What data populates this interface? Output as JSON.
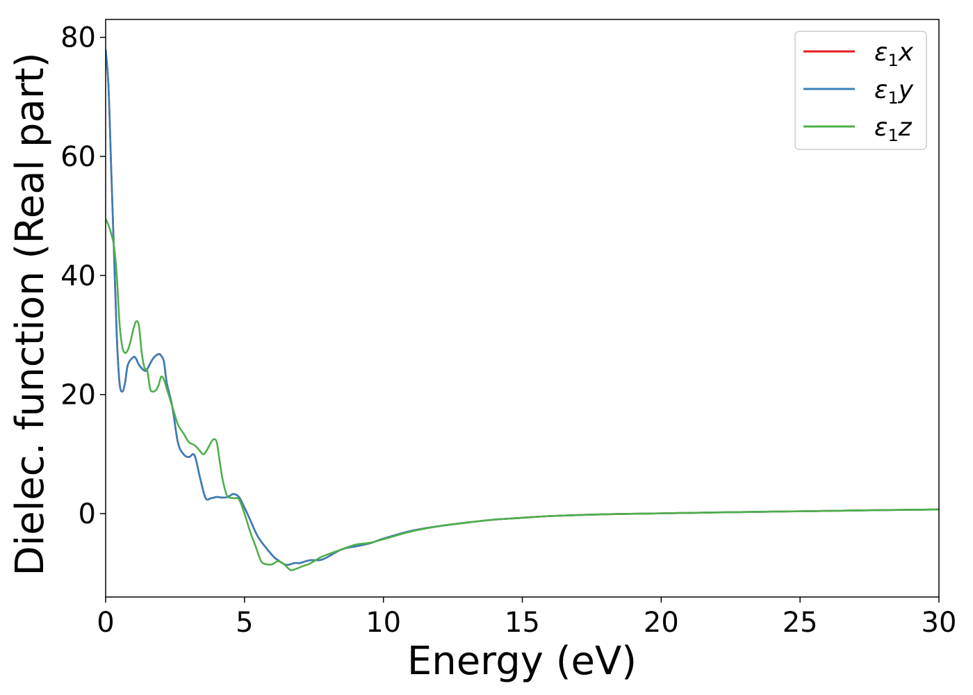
{
  "chart_data": {
    "type": "line",
    "title": "",
    "xlabel": "Energy (eV)",
    "ylabel": "Dielec. function (Real part)",
    "xlim": [
      0,
      30
    ],
    "ylim": [
      -14,
      83
    ],
    "xticks": [
      0,
      5,
      10,
      15,
      20,
      25,
      30
    ],
    "yticks": [
      0,
      20,
      40,
      60,
      80
    ],
    "xtick_labels": [
      "0",
      "5",
      "10",
      "15",
      "20",
      "25",
      "30"
    ],
    "ytick_labels": [
      "0",
      "20",
      "40",
      "60",
      "80"
    ],
    "grid": false,
    "legend_position": "top-right",
    "series": [
      {
        "name": "ε1x",
        "color": "#e41a1c",
        "x": [
          0,
          0.1,
          0.2,
          0.3,
          0.4,
          0.5,
          0.6,
          0.7,
          0.8,
          1.0,
          1.1,
          1.2,
          1.4,
          1.5,
          1.7,
          1.9,
          2.0,
          2.1,
          2.2,
          2.4,
          2.6,
          2.8,
          3.0,
          3.2,
          3.4,
          3.6,
          3.8,
          4.0,
          4.2,
          4.4,
          4.6,
          4.8,
          5.0,
          5.2,
          5.5,
          6.0,
          6.2,
          6.5,
          6.8,
          7.0,
          7.2,
          7.4,
          7.8,
          8.5,
          9.0,
          9.5,
          10.0,
          11.0,
          12.0,
          13.0,
          14.0,
          15.0,
          16.0,
          18.0,
          20.0,
          22.0,
          25.0,
          28.0,
          30.0
        ],
        "y": [
          78,
          72,
          58,
          44,
          30,
          22,
          20.5,
          22,
          25,
          26.3,
          26,
          25,
          24,
          24.3,
          26,
          26.8,
          26.5,
          25.5,
          22,
          18,
          12,
          10,
          9.5,
          9.8,
          6,
          2.6,
          2.6,
          2.8,
          2.7,
          2.8,
          3.3,
          2.8,
          1,
          -1,
          -4,
          -7,
          -7.8,
          -8.6,
          -8.3,
          -8.3,
          -8,
          -7.8,
          -7.7,
          -6,
          -5.5,
          -5,
          -4.2,
          -2.9,
          -2.1,
          -1.5,
          -1.0,
          -0.7,
          -0.4,
          -0.1,
          0.05,
          0.2,
          0.4,
          0.6,
          0.7
        ]
      },
      {
        "name": "ε1y",
        "color": "#377eb8",
        "x": [
          0,
          0.1,
          0.2,
          0.3,
          0.4,
          0.5,
          0.6,
          0.7,
          0.8,
          1.0,
          1.1,
          1.2,
          1.4,
          1.5,
          1.7,
          1.9,
          2.0,
          2.1,
          2.2,
          2.4,
          2.6,
          2.8,
          3.0,
          3.2,
          3.4,
          3.6,
          3.8,
          4.0,
          4.2,
          4.4,
          4.6,
          4.8,
          5.0,
          5.2,
          5.5,
          6.0,
          6.2,
          6.5,
          6.8,
          7.0,
          7.2,
          7.4,
          7.8,
          8.5,
          9.0,
          9.5,
          10.0,
          11.0,
          12.0,
          13.0,
          14.0,
          15.0,
          16.0,
          18.0,
          20.0,
          22.0,
          25.0,
          28.0,
          30.0
        ],
        "y": [
          78,
          72,
          58,
          44,
          30,
          22,
          20.5,
          22,
          25,
          26.3,
          26,
          25,
          24,
          24.3,
          26,
          26.8,
          26.5,
          25.5,
          22,
          18,
          12,
          10,
          9.5,
          9.8,
          6,
          2.6,
          2.6,
          2.8,
          2.7,
          2.8,
          3.3,
          2.8,
          1,
          -1,
          -4,
          -7,
          -7.8,
          -8.6,
          -8.3,
          -8.3,
          -8,
          -7.8,
          -7.7,
          -6,
          -5.5,
          -5,
          -4.2,
          -2.9,
          -2.1,
          -1.5,
          -1.0,
          -0.7,
          -0.4,
          -0.1,
          0.05,
          0.2,
          0.4,
          0.6,
          0.7
        ]
      },
      {
        "name": "ε1z",
        "color": "#4daf4a",
        "x": [
          0,
          0.1,
          0.2,
          0.3,
          0.4,
          0.5,
          0.6,
          0.7,
          0.8,
          0.9,
          1.0,
          1.1,
          1.2,
          1.3,
          1.4,
          1.5,
          1.6,
          1.7,
          1.8,
          1.9,
          2.0,
          2.1,
          2.2,
          2.4,
          2.6,
          2.8,
          3.0,
          3.2,
          3.4,
          3.5,
          3.6,
          3.8,
          3.9,
          4.0,
          4.1,
          4.2,
          4.3,
          4.4,
          4.6,
          4.8,
          5.0,
          5.2,
          5.4,
          5.6,
          5.8,
          6.0,
          6.2,
          6.4,
          6.6,
          6.7,
          6.9,
          7.1,
          7.3,
          7.5,
          7.8,
          8.5,
          9.0,
          9.5,
          10.0,
          11.0,
          12.0,
          13.0,
          14.0,
          15.0,
          16.0,
          18.0,
          20.0,
          22.0,
          25.0,
          28.0,
          30.0
        ],
        "y": [
          49.5,
          48.5,
          47,
          45,
          40,
          32,
          28,
          27,
          27.5,
          29,
          31,
          32.3,
          31.5,
          27,
          24.5,
          24,
          21,
          20.5,
          20.7,
          21.5,
          23,
          22.5,
          21,
          18,
          15,
          13.5,
          12,
          11.5,
          10.5,
          10,
          10.3,
          12,
          12.5,
          12,
          9,
          6,
          4,
          2.8,
          2.6,
          2.4,
          0,
          -3,
          -5.5,
          -8,
          -8.5,
          -8.5,
          -8,
          -8.4,
          -9.3,
          -9.5,
          -9.2,
          -8.8,
          -8.5,
          -8,
          -7.2,
          -6,
          -5.2,
          -4.9,
          -4.3,
          -3,
          -2.1,
          -1.5,
          -1.0,
          -0.7,
          -0.4,
          -0.1,
          0.05,
          0.2,
          0.4,
          0.6,
          0.7
        ]
      }
    ]
  },
  "legend": {
    "entries": [
      {
        "symbol": "ε",
        "sub": "1",
        "component": "x"
      },
      {
        "symbol": "ε",
        "sub": "1",
        "component": "y"
      },
      {
        "symbol": "ε",
        "sub": "1",
        "component": "z"
      }
    ]
  }
}
